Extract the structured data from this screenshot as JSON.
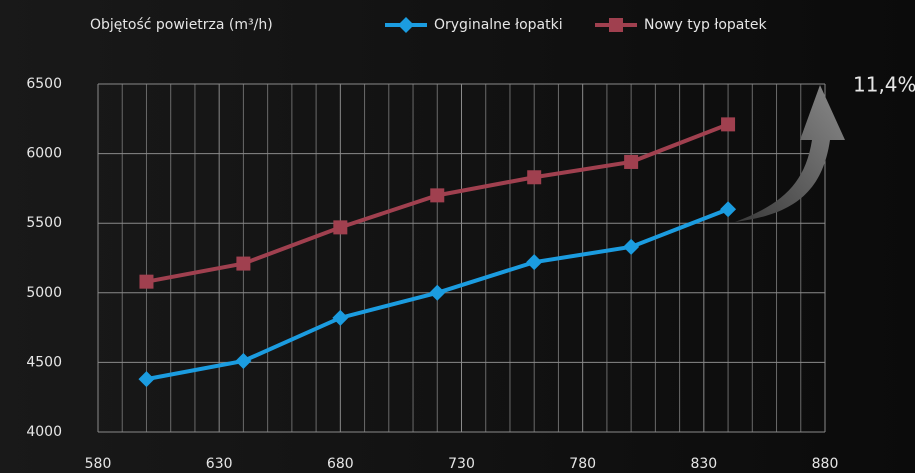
{
  "chart_data": {
    "type": "line",
    "title": "Objętość powietrza (m³/h)",
    "x": [
      600,
      640,
      680,
      720,
      760,
      800,
      840
    ],
    "series": [
      {
        "name": "Oryginalne łopatki",
        "color": "#1b9ce0",
        "marker": "diamond",
        "values": [
          4380,
          4510,
          4820,
          5000,
          5220,
          5330,
          5600
        ]
      },
      {
        "name": "Nowy typ łopatek",
        "color": "#a0404f",
        "marker": "square",
        "values": [
          5080,
          5210,
          5470,
          5700,
          5830,
          5940,
          6210
        ]
      }
    ],
    "xlim": [
      580,
      880
    ],
    "xticks": [
      580,
      630,
      680,
      730,
      780,
      830,
      880
    ],
    "ylim": [
      4000,
      6500
    ],
    "yticks": [
      4000,
      4500,
      5000,
      5500,
      6000,
      6500
    ],
    "grid": true,
    "minor_grid": true,
    "legend": "top",
    "annotation": "11,4%"
  }
}
